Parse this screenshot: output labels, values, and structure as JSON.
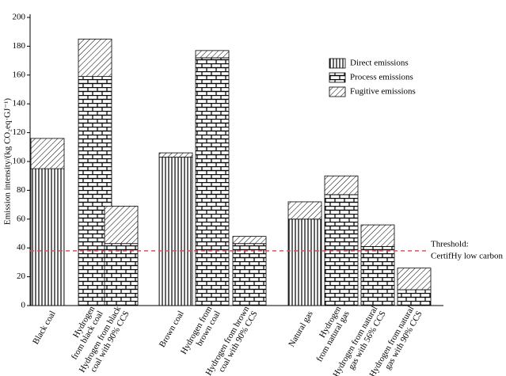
{
  "chart_data": {
    "type": "stacked-bar",
    "ylabel": "Emission intensity/(kg CO₂eq·GJ⁻¹)",
    "categories": [
      [
        "Black coal"
      ],
      [
        "Hydrogen",
        "from black coal"
      ],
      [
        "Hydrogen from black",
        "coal with 90% CCS"
      ],
      [
        "Brown coal"
      ],
      [
        "Hydrogen from",
        "brown coal"
      ],
      [
        "Hydrogen from brown",
        "coal with 90% CCS"
      ],
      [
        "Natural gas"
      ],
      [
        "Hydrogen",
        "from natural gas"
      ],
      [
        "Hydrogen from natural",
        "gas with 56% CCS"
      ],
      [
        "Hydrogen from natural",
        "gas with 90% CCS"
      ]
    ],
    "series": [
      {
        "name": "Direct emissions",
        "pattern": "vertical",
        "values": [
          95,
          0,
          0,
          103,
          0,
          0,
          60,
          0,
          0,
          0
        ]
      },
      {
        "name": "Process emissions",
        "pattern": "brick",
        "values": [
          0,
          159,
          43,
          0,
          172,
          43,
          0,
          77,
          41,
          11
        ]
      },
      {
        "name": "Fugitive emissions",
        "pattern": "diagonal",
        "values": [
          21,
          26,
          26,
          3,
          5,
          5,
          12,
          13,
          15,
          15
        ]
      }
    ],
    "ylim": [
      0,
      200
    ],
    "yticks": [
      0,
      20,
      40,
      60,
      80,
      100,
      120,
      140,
      160,
      180,
      200
    ],
    "threshold": {
      "value": 38,
      "color": "#e05050",
      "label": [
        "Threshold:",
        "CertifHy low carbon"
      ]
    }
  }
}
